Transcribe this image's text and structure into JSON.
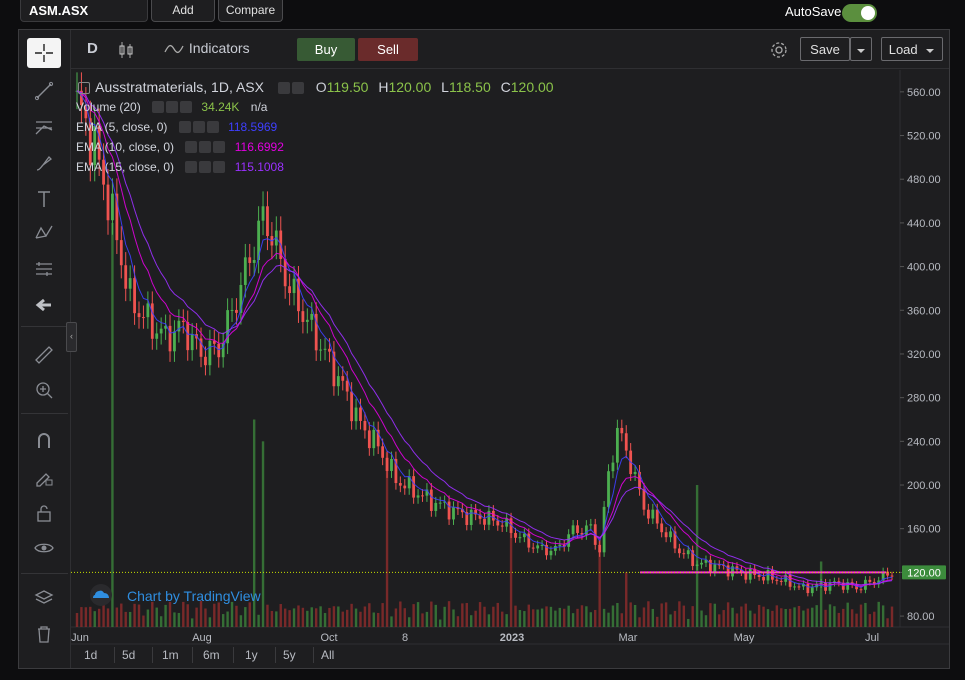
{
  "topbar": {
    "symbol": "ASM.ASX",
    "add_label": "Add",
    "compare_label": "Compare",
    "autosave_label": "AutoSave",
    "autosave_on": true
  },
  "header": {
    "interval": "D",
    "indicators_label": "Indicators",
    "buy_label": "Buy",
    "sell_label": "Sell",
    "save_label": "Save",
    "load_label": "Load"
  },
  "legend": {
    "title": "Ausstratmaterials, 1D, ASX",
    "open_label": "O",
    "open": "119.50",
    "high_label": "H",
    "high": "120.00",
    "low_label": "L",
    "low": "118.50",
    "close_label": "C",
    "close": "120.00",
    "volume_name": "Volume (20)",
    "volume_value": "34.24K",
    "volume_extra": "n/a",
    "ema5_name": "EMA (5, close, 0)",
    "ema5_value": "118.5969",
    "ema10_name": "EMA (10, close, 0)",
    "ema10_value": "116.6992",
    "ema15_name": "EMA (15, close, 0)",
    "ema15_value": "115.1008"
  },
  "ranges": [
    "1d",
    "5d",
    "1m",
    "6m",
    "1y",
    "5y",
    "All"
  ],
  "branding": "Chart by TradingView",
  "colors": {
    "up": "#26a69a",
    "down": "#ef5350",
    "ema5": "#3f3fff",
    "ema10": "#e000e0",
    "ema15": "#9b30ff",
    "price_line": "#c8e000"
  },
  "chart_data": {
    "type": "candlestick",
    "y_ticks": [
      "560.00",
      "520.00",
      "480.00",
      "440.00",
      "400.00",
      "360.00",
      "320.00",
      "280.00",
      "240.00",
      "200.00",
      "160.00",
      "120.00",
      "80.00"
    ],
    "x_ticks": [
      "Jun",
      "Aug",
      "Oct",
      "8",
      "2023",
      "Mar",
      "May",
      "Jul"
    ],
    "last_price": "120.00",
    "ylim": [
      70,
      580
    ],
    "close_path": [
      [
        0,
        550
      ],
      [
        4,
        510
      ],
      [
        8,
        445
      ],
      [
        12,
        370
      ],
      [
        16,
        350
      ],
      [
        20,
        335
      ],
      [
        24,
        345
      ],
      [
        28,
        320
      ],
      [
        32,
        325
      ],
      [
        36,
        370
      ],
      [
        40,
        420
      ],
      [
        42,
        445
      ],
      [
        44,
        430
      ],
      [
        48,
        380
      ],
      [
        52,
        350
      ],
      [
        56,
        320
      ],
      [
        60,
        290
      ],
      [
        64,
        255
      ],
      [
        68,
        235
      ],
      [
        72,
        205
      ],
      [
        76,
        195
      ],
      [
        80,
        185
      ],
      [
        84,
        178
      ],
      [
        88,
        172
      ],
      [
        92,
        170
      ],
      [
        96,
        165
      ],
      [
        100,
        152
      ],
      [
        104,
        142
      ],
      [
        108,
        140
      ],
      [
        112,
        158
      ],
      [
        116,
        160
      ],
      [
        118,
        140
      ],
      [
        120,
        210
      ],
      [
        122,
        250
      ],
      [
        124,
        232
      ],
      [
        128,
        180
      ],
      [
        132,
        160
      ],
      [
        136,
        140
      ],
      [
        140,
        128
      ],
      [
        144,
        126
      ],
      [
        148,
        122
      ],
      [
        152,
        118
      ],
      [
        156,
        116
      ],
      [
        160,
        112
      ],
      [
        164,
        105
      ],
      [
        168,
        108
      ],
      [
        172,
        110
      ],
      [
        176,
        106
      ],
      [
        180,
        112
      ],
      [
        184,
        120
      ]
    ],
    "volume_spikes": [
      [
        8,
        440
      ],
      [
        40,
        260
      ],
      [
        42,
        240
      ],
      [
        70,
        230
      ],
      [
        98,
        170
      ],
      [
        118,
        150
      ],
      [
        124,
        120
      ],
      [
        140,
        200
      ],
      [
        168,
        130
      ]
    ]
  }
}
